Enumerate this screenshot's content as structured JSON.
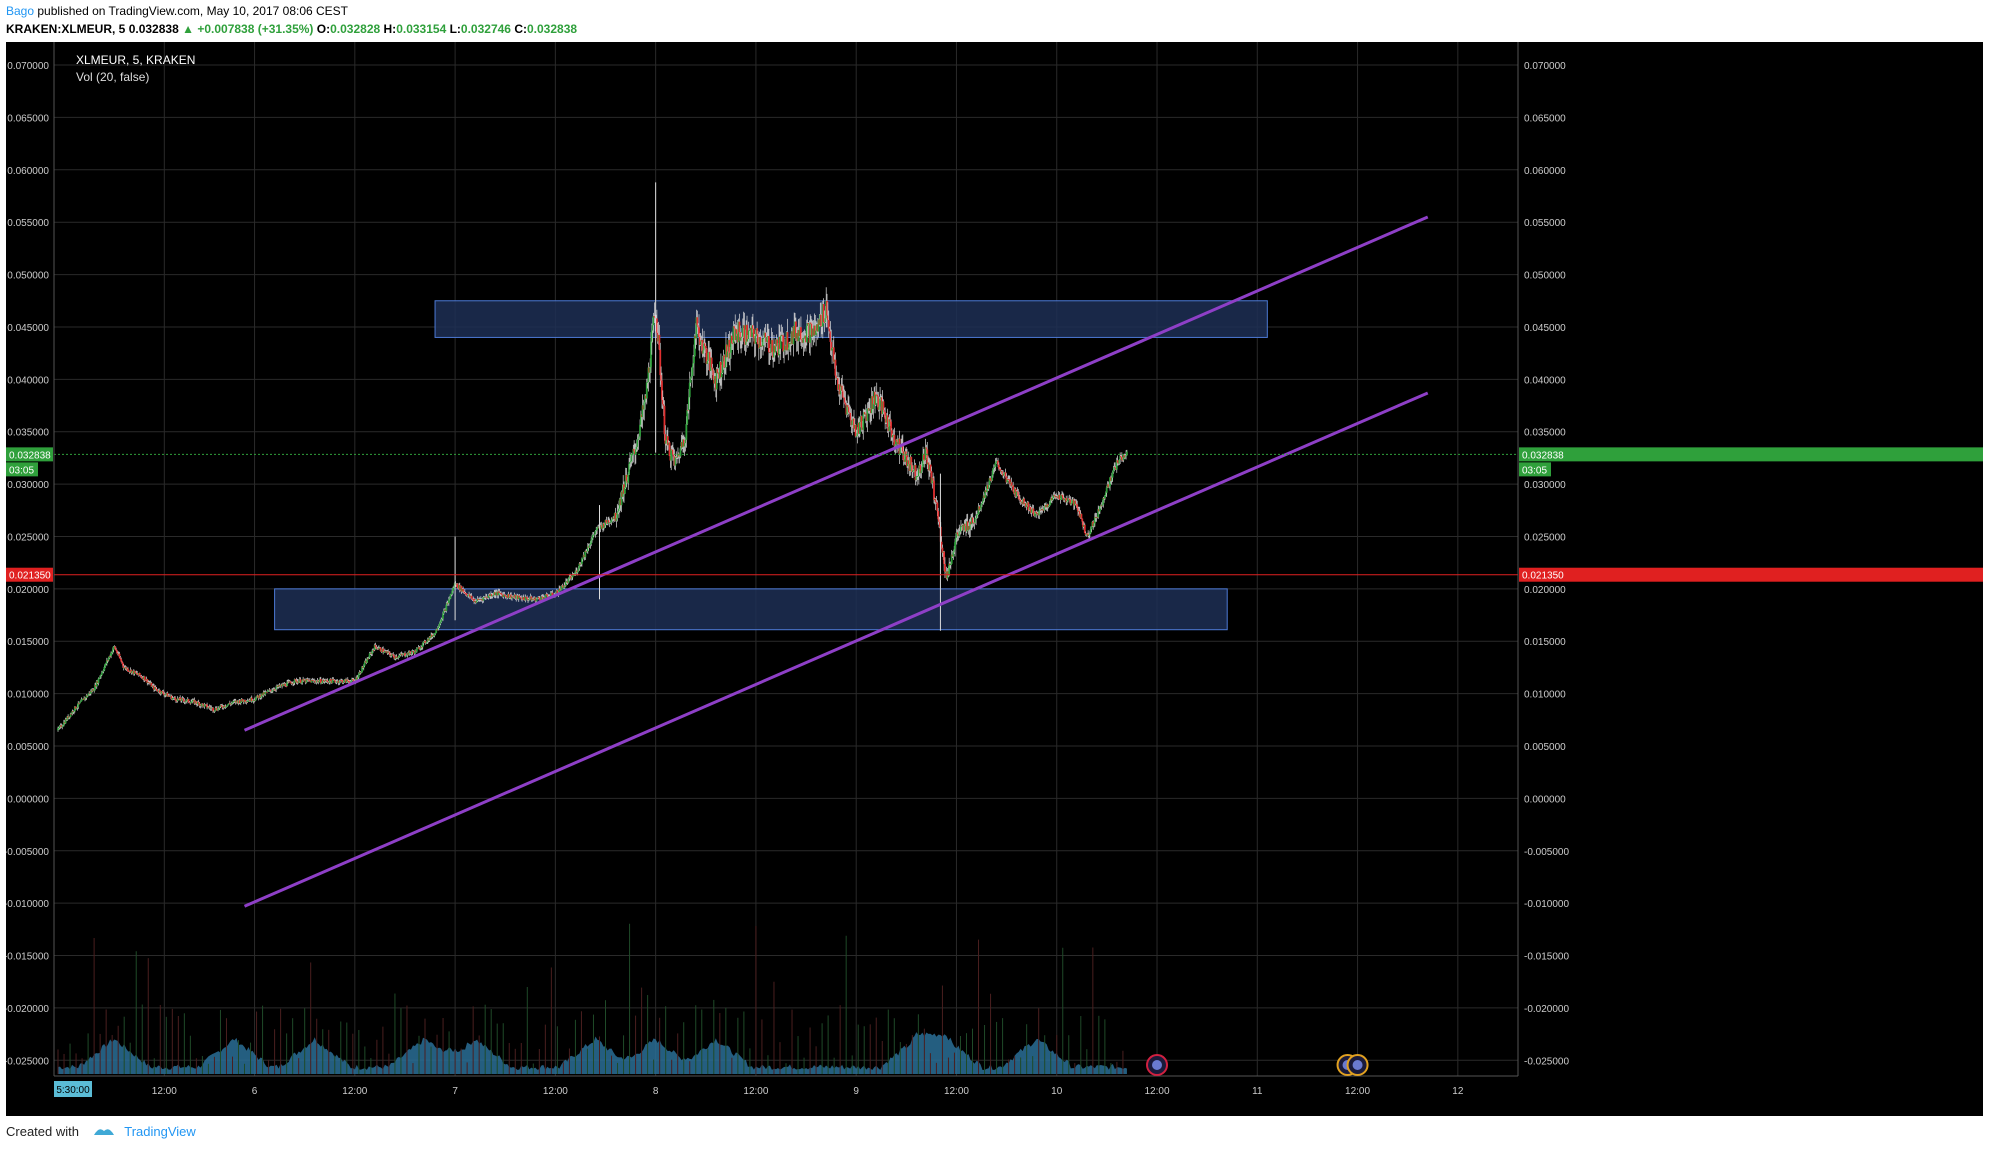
{
  "header": {
    "author": "Bago",
    "published_text": "published on TradingView.com, May 10, 2017 08:06 CEST",
    "symbol_line": "KRAKEN:XLMEUR, 5",
    "last": "0.032838",
    "change": "+0.007838 (+31.35%)",
    "o_label": "O:",
    "o": "0.032828",
    "h_label": "H:",
    "h": "0.033154",
    "l_label": "L:",
    "l": "0.032746",
    "c_label": "C:",
    "c": "0.032838"
  },
  "footer": {
    "created_with": "Created with",
    "brand": "TradingView"
  },
  "colors": {
    "background": "#000000",
    "up": "#2fa03b",
    "down": "#e03030",
    "wick": "#dddddd",
    "channel": "#8e3fc7",
    "zone_fill": "#1d2f55",
    "zone_border": "#4d7ad6",
    "volume": "#2a6e96",
    "red_level": "#e02020",
    "price_line": "#2fa03b"
  },
  "chart_data": {
    "type": "candlestick",
    "title": "XLMEUR, 5, KRAKEN",
    "indicator": "Vol (20, false)",
    "y_ticks": [
      "0.070000",
      "0.065000",
      "0.060000",
      "0.055000",
      "0.050000",
      "0.045000",
      "0.040000",
      "0.035000",
      "0.030000",
      "0.025000",
      "0.020000",
      "0.015000",
      "0.010000",
      "0.005000",
      "0.000000",
      "-0.005000",
      "-0.010000",
      "-0.015000",
      "-0.020000",
      "-0.025000"
    ],
    "ylim": [
      -0.0265,
      0.0722
    ],
    "x_ticks": [
      {
        "label": "12:00",
        "t": 0.55
      },
      {
        "label": "6",
        "t": 1.0
      },
      {
        "label": "12:00",
        "t": 1.5
      },
      {
        "label": "7",
        "t": 2.0
      },
      {
        "label": "12:00",
        "t": 2.5
      },
      {
        "label": "8",
        "t": 3.0
      },
      {
        "label": "12:00",
        "t": 3.5
      },
      {
        "label": "9",
        "t": 4.0
      },
      {
        "label": "12:00",
        "t": 4.5
      },
      {
        "label": "10",
        "t": 5.0
      },
      {
        "label": "12:00",
        "t": 5.5
      },
      {
        "label": "11",
        "t": 6.0
      },
      {
        "label": "12:00",
        "t": 6.5
      },
      {
        "label": "12",
        "t": 7.0
      }
    ],
    "x_range_days": [
      0.0,
      7.3
    ],
    "time_badge": "5:30:00",
    "price_path": [
      [
        0.02,
        0.0065
      ],
      [
        0.1,
        0.0085
      ],
      [
        0.2,
        0.0105
      ],
      [
        0.3,
        0.0145
      ],
      [
        0.35,
        0.0125
      ],
      [
        0.45,
        0.0115
      ],
      [
        0.5,
        0.0105
      ],
      [
        0.6,
        0.0095
      ],
      [
        0.7,
        0.0092
      ],
      [
        0.8,
        0.0085
      ],
      [
        0.9,
        0.0092
      ],
      [
        1.0,
        0.0095
      ],
      [
        1.1,
        0.0105
      ],
      [
        1.2,
        0.0112
      ],
      [
        1.35,
        0.0112
      ],
      [
        1.5,
        0.0112
      ],
      [
        1.6,
        0.0145
      ],
      [
        1.7,
        0.0135
      ],
      [
        1.8,
        0.014
      ],
      [
        1.9,
        0.0158
      ],
      [
        1.95,
        0.018
      ],
      [
        2.0,
        0.0205
      ],
      [
        2.1,
        0.0188
      ],
      [
        2.2,
        0.0196
      ],
      [
        2.3,
        0.0192
      ],
      [
        2.4,
        0.019
      ],
      [
        2.5,
        0.0195
      ],
      [
        2.6,
        0.0215
      ],
      [
        2.7,
        0.0255
      ],
      [
        2.8,
        0.027
      ],
      [
        2.9,
        0.0335
      ],
      [
        2.95,
        0.038
      ],
      [
        3.0,
        0.047
      ],
      [
        3.05,
        0.034
      ],
      [
        3.1,
        0.032
      ],
      [
        3.15,
        0.035
      ],
      [
        3.2,
        0.045
      ],
      [
        3.3,
        0.04
      ],
      [
        3.4,
        0.0445
      ],
      [
        3.5,
        0.044
      ],
      [
        3.6,
        0.043
      ],
      [
        3.7,
        0.0445
      ],
      [
        3.8,
        0.0445
      ],
      [
        3.85,
        0.047
      ],
      [
        3.9,
        0.04
      ],
      [
        4.0,
        0.035
      ],
      [
        4.1,
        0.0385
      ],
      [
        4.2,
        0.034
      ],
      [
        4.3,
        0.031
      ],
      [
        4.35,
        0.033
      ],
      [
        4.4,
        0.028
      ],
      [
        4.45,
        0.021
      ],
      [
        4.5,
        0.025
      ],
      [
        4.6,
        0.027
      ],
      [
        4.7,
        0.032
      ],
      [
        4.8,
        0.029
      ],
      [
        4.9,
        0.027
      ],
      [
        5.0,
        0.029
      ],
      [
        5.1,
        0.028
      ],
      [
        5.15,
        0.025
      ],
      [
        5.2,
        0.027
      ],
      [
        5.3,
        0.032
      ],
      [
        5.35,
        0.033
      ]
    ],
    "volume_spikes": [
      0.3,
      0.9,
      1.3,
      1.85,
      2.1,
      2.7,
      3.0,
      3.3,
      4.3,
      4.45,
      4.9
    ],
    "last_price": 0.032838,
    "last_price_label": "0.032838",
    "countdown": "03:05",
    "red_level": 0.02135,
    "red_level_label": "0.021350",
    "zones": [
      {
        "x1": 1.9,
        "x2": 6.05,
        "y1": 0.0475,
        "y2": 0.044
      },
      {
        "x1": 1.1,
        "x2": 5.85,
        "y1": 0.02,
        "y2": 0.0161
      }
    ],
    "channel_lines": [
      {
        "x1": 0.95,
        "y1": 0.0065,
        "x2": 6.85,
        "y2": 0.0555
      },
      {
        "x1": 0.95,
        "y1": -0.0103,
        "x2": 6.85,
        "y2": 0.0387
      }
    ],
    "event_markers": [
      5.5,
      6.45,
      6.5
    ]
  }
}
